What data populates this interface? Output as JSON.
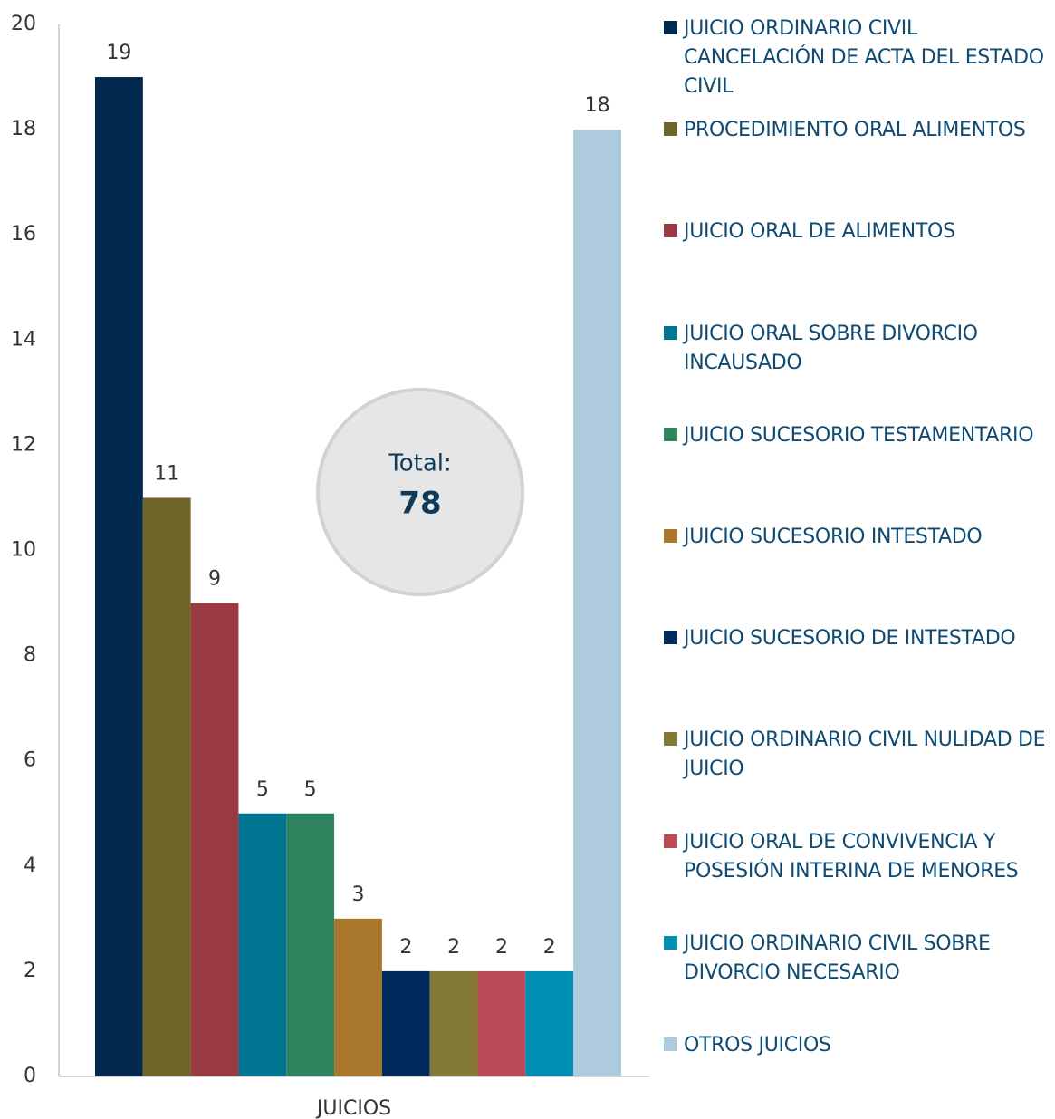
{
  "chart_data": {
    "type": "bar",
    "categories": [
      "JUICIOS"
    ],
    "series": [
      {
        "name": "JUICIO ORDINARIO CIVIL CANCELACIÓN DE ACTA DEL ESTADO CIVIL",
        "color": "#01294f",
        "values": [
          19
        ]
      },
      {
        "name": "PROCEDIMIENTO ORAL ALIMENTOS",
        "color": "#6f6529",
        "values": [
          11
        ]
      },
      {
        "name": "JUICIO ORAL DE ALIMENTOS",
        "color": "#9a3b43",
        "values": [
          9
        ]
      },
      {
        "name": "JUICIO ORAL SOBRE DIVORCIO INCAUSADO",
        "color": "#007591",
        "values": [
          5
        ]
      },
      {
        "name": "JUICIO SUCESORIO TESTAMENTARIO",
        "color": "#2e8560",
        "values": [
          5
        ]
      },
      {
        "name": "JUICIO SUCESORIO INTESTADO",
        "color": "#a8772c",
        "values": [
          3
        ]
      },
      {
        "name": "JUICIO SUCESORIO DE INTESTADO",
        "color": "#002b5c",
        "values": [
          2
        ]
      },
      {
        "name": "JUICIO ORDINARIO CIVIL NULIDAD DE JUICIO",
        "color": "#857a35",
        "values": [
          2
        ]
      },
      {
        "name": "JUICIO ORAL DE CONVIVENCIA Y POSESIÓN INTERINA DE MENORES",
        "color": "#bb4a56",
        "values": [
          2
        ]
      },
      {
        "name": "JUICIO ORDINARIO CIVIL SOBRE DIVORCIO NECESARIO",
        "color": "#008eb3",
        "values": [
          2
        ]
      },
      {
        "name": "OTROS JUICIOS",
        "color": "#adcbdc",
        "values": [
          18
        ]
      }
    ],
    "ylim": [
      0,
      20
    ],
    "yticks": [
      0,
      2,
      4,
      6,
      8,
      10,
      12,
      14,
      16,
      18,
      20
    ],
    "grid": false,
    "legend": "right",
    "annotation": {
      "label": "Total:",
      "value": 78
    }
  }
}
